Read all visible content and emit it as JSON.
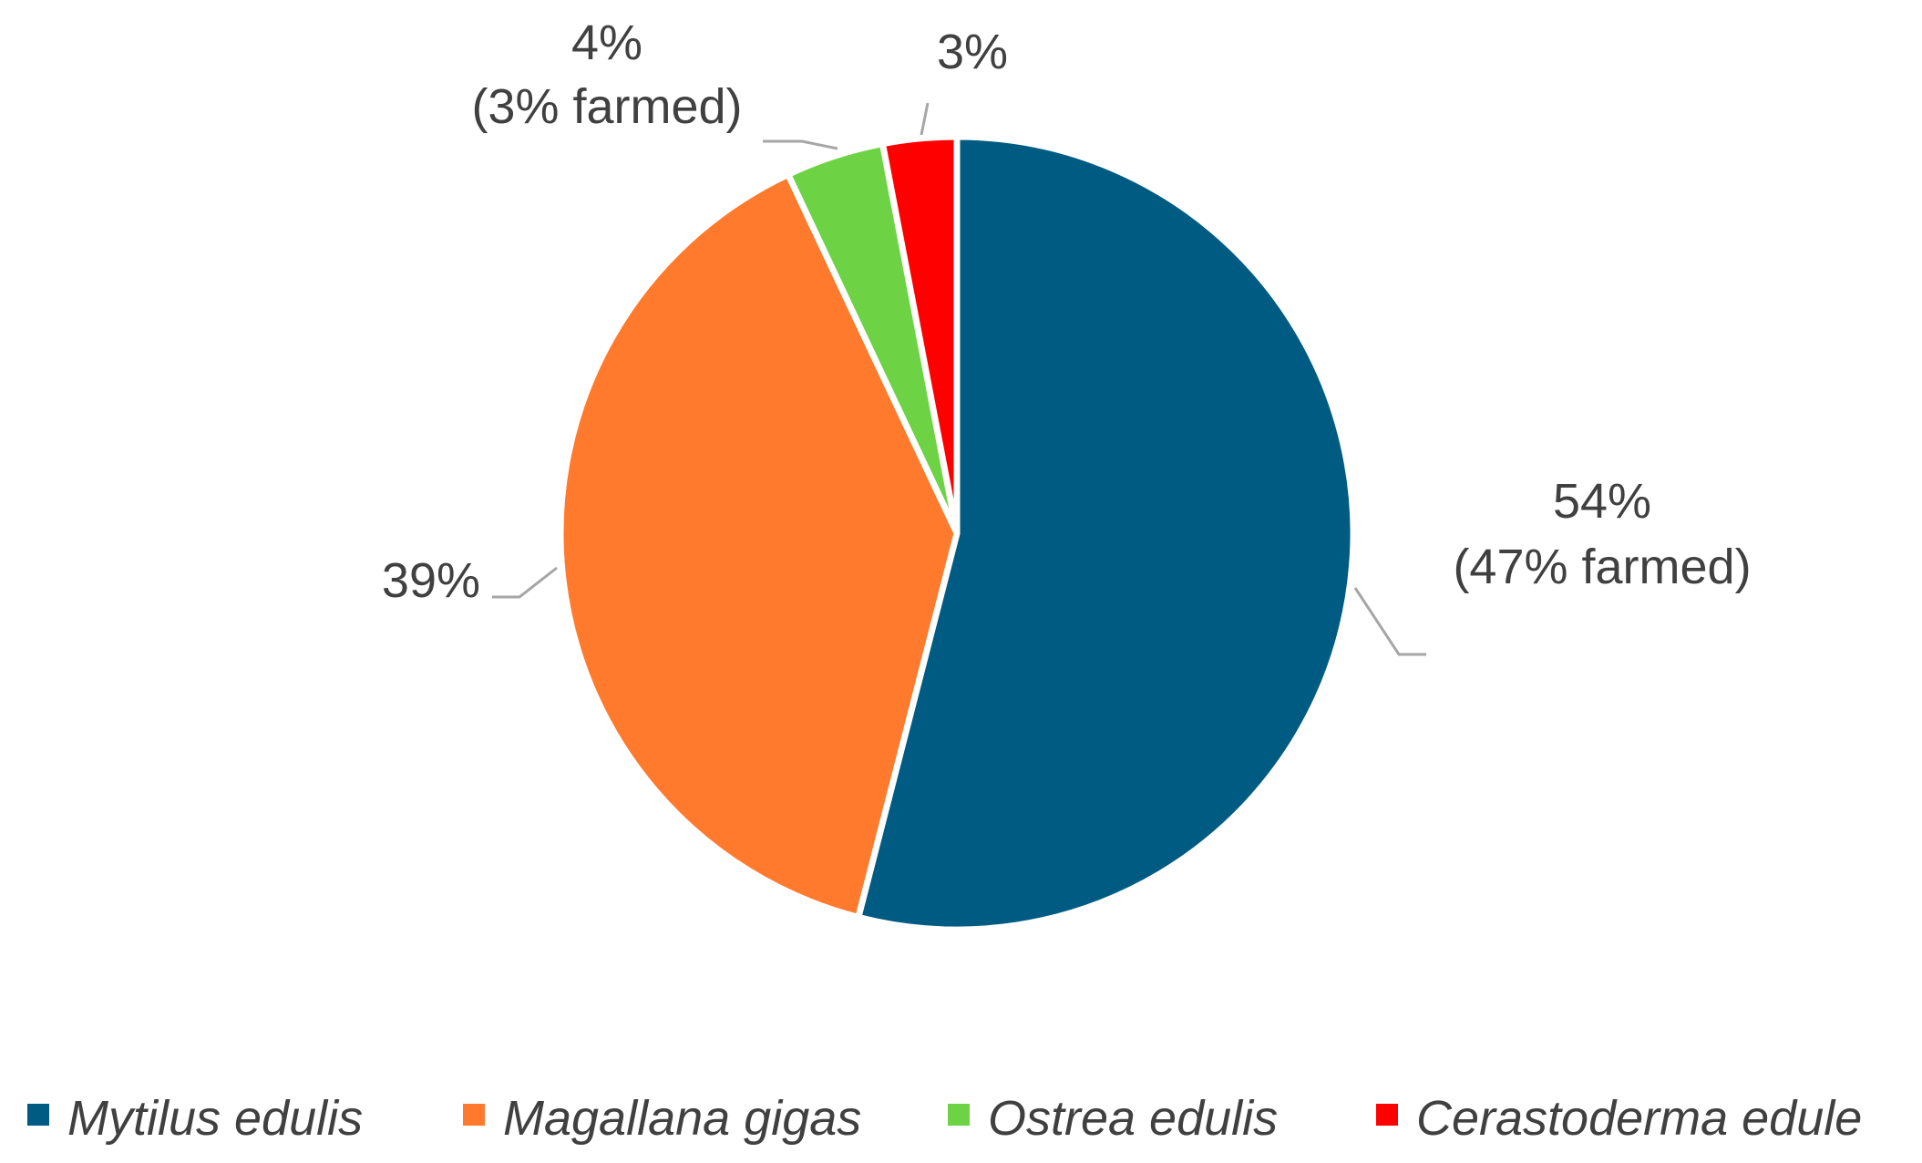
{
  "chart_data": {
    "type": "pie",
    "series": [
      {
        "name": "Mytilus edulis",
        "value": 54,
        "color": "#005b82",
        "label_lines": [
          "54%",
          "(47% farmed)"
        ]
      },
      {
        "name": "Magallana gigas",
        "value": 39,
        "color": "#ff7a2c",
        "label_lines": [
          "39%"
        ]
      },
      {
        "name": "Ostrea edulis",
        "value": 4,
        "color": "#6dd344",
        "label_lines": [
          "4%",
          "(3% farmed)"
        ]
      },
      {
        "name": "Cerastoderma edule",
        "value": 3,
        "color": "#ff0000",
        "label_lines": [
          "3%"
        ]
      }
    ],
    "start_angle": "12 o'clock",
    "direction": "clockwise",
    "legend_position": "bottom",
    "legend_entries": [
      "Mytilus edulis",
      "Magallana gigas",
      "Ostrea edulis",
      "Cerastoderma edule"
    ]
  }
}
